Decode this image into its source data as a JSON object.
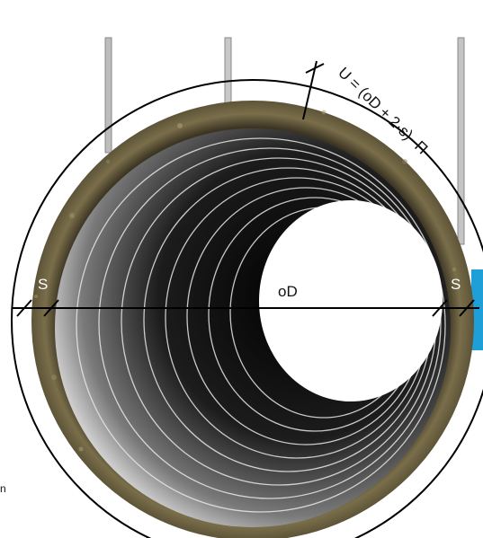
{
  "labels": {
    "formula": "U = (oD + 2·s)· Π",
    "diameter": "oD",
    "wall_left": "S",
    "wall_right": "S",
    "corner_text": "n"
  },
  "colors": {
    "insulation": "#6b6040",
    "duct_inner": "#1a1a1a",
    "accent_blue": "#1e9fd8",
    "line": "#000000"
  }
}
